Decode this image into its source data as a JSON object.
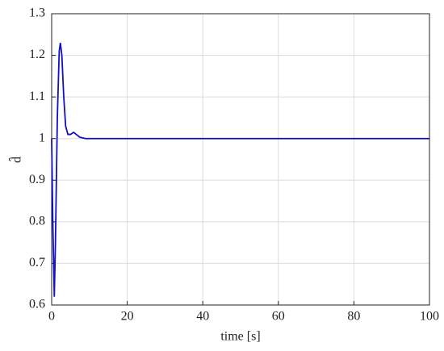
{
  "chart_data": {
    "type": "line",
    "xlabel": "time [s]",
    "ylabel": "d̂",
    "x": [
      0,
      0.3,
      0.7,
      1.0,
      1.5,
      2.0,
      2.3,
      2.7,
      3.2,
      3.7,
      4.3,
      5.0,
      5.8,
      6.5,
      7.5,
      9,
      12,
      20,
      100
    ],
    "series": [
      {
        "name": "d̂",
        "color": "#1010c8",
        "values": [
          1.0,
          0.8,
          0.62,
          0.75,
          1.05,
          1.21,
          1.23,
          1.2,
          1.1,
          1.03,
          1.01,
          1.01,
          1.015,
          1.01,
          1.003,
          1.0,
          1.0,
          1.0,
          1.0
        ]
      }
    ],
    "xlim": [
      0,
      100
    ],
    "xticks": [
      0,
      20,
      40,
      60,
      80,
      100
    ],
    "ylim": [
      0.6,
      1.3
    ],
    "yticks": [
      0.6,
      0.7,
      0.8,
      0.9,
      1,
      1.1,
      1.2,
      1.3
    ],
    "grid": true
  }
}
